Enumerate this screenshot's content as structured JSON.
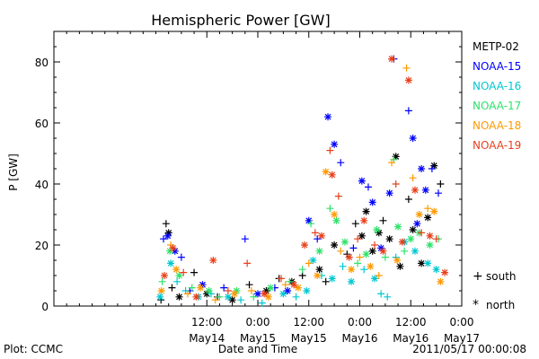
{
  "footer": {
    "plot_by": "Plot: CCMC",
    "timestamp": "2011/05/17 00:00:08"
  },
  "marker_key": {
    "south_symbol": "+",
    "south_label": "south",
    "north_symbol": "*",
    "north_label": "north"
  },
  "chart_data": {
    "type": "scatter",
    "title": "Hemispheric Power [GW]",
    "xlabel": "Date and Time",
    "ylabel": "P [GW]",
    "x_unit": "hours since 2011-05-13 00:00",
    "xlim": [
      0,
      96
    ],
    "ylim": [
      0,
      90
    ],
    "y_ticks": [
      0,
      20,
      40,
      60,
      80
    ],
    "x_ticks": [
      {
        "x": 36,
        "time": "12:00",
        "date": "May14"
      },
      {
        "x": 48,
        "time": "0:00",
        "date": "May15"
      },
      {
        "x": 60,
        "time": "12:00",
        "date": "May15"
      },
      {
        "x": 72,
        "time": "0:00",
        "date": "May16"
      },
      {
        "x": 84,
        "time": "12:00",
        "date": "May16"
      },
      {
        "x": 96,
        "time": "0:00",
        "date": "May17"
      }
    ],
    "legend_position": "right",
    "marker_types": {
      "+": "south",
      "*": "north"
    },
    "series": [
      {
        "name": "METP-02",
        "color": "#000000",
        "points": [
          {
            "x": 25.2,
            "y": 2,
            "m": "+"
          },
          {
            "x": 26.4,
            "y": 27,
            "m": "+"
          },
          {
            "x": 27.0,
            "y": 24,
            "m": "*"
          },
          {
            "x": 27.8,
            "y": 6,
            "m": "+"
          },
          {
            "x": 29.5,
            "y": 3,
            "m": "*"
          },
          {
            "x": 33.0,
            "y": 11,
            "m": "+"
          },
          {
            "x": 36.0,
            "y": 4,
            "m": "*"
          },
          {
            "x": 38.5,
            "y": 3,
            "m": "+"
          },
          {
            "x": 42.0,
            "y": 2,
            "m": "*"
          },
          {
            "x": 46.0,
            "y": 7,
            "m": "+"
          },
          {
            "x": 50.0,
            "y": 5,
            "m": "*"
          },
          {
            "x": 53.0,
            "y": 9,
            "m": "+"
          },
          {
            "x": 56.0,
            "y": 8,
            "m": "*"
          },
          {
            "x": 58.5,
            "y": 10,
            "m": "+"
          },
          {
            "x": 62.5,
            "y": 12,
            "m": "*"
          },
          {
            "x": 64.0,
            "y": 8,
            "m": "+"
          },
          {
            "x": 66.0,
            "y": 20,
            "m": "*"
          },
          {
            "x": 69.0,
            "y": 17,
            "m": "+"
          },
          {
            "x": 71.0,
            "y": 27,
            "m": "+"
          },
          {
            "x": 72.5,
            "y": 23,
            "m": "*"
          },
          {
            "x": 73.5,
            "y": 31,
            "m": "*"
          },
          {
            "x": 75.0,
            "y": 18,
            "m": "*"
          },
          {
            "x": 76.5,
            "y": 24,
            "m": "*"
          },
          {
            "x": 77.5,
            "y": 28,
            "m": "+"
          },
          {
            "x": 79.0,
            "y": 22,
            "m": "*"
          },
          {
            "x": 80.5,
            "y": 49,
            "m": "*"
          },
          {
            "x": 81.5,
            "y": 13,
            "m": "*"
          },
          {
            "x": 83.5,
            "y": 35,
            "m": "+"
          },
          {
            "x": 84.5,
            "y": 25,
            "m": "*"
          },
          {
            "x": 86.5,
            "y": 14,
            "m": "*"
          },
          {
            "x": 88.0,
            "y": 29,
            "m": "*"
          },
          {
            "x": 89.5,
            "y": 46,
            "m": "*"
          },
          {
            "x": 91.0,
            "y": 40,
            "m": "+"
          }
        ]
      },
      {
        "name": "NOAA-15",
        "color": "#0000ff",
        "points": [
          {
            "x": 25.8,
            "y": 22,
            "m": "+"
          },
          {
            "x": 26.8,
            "y": 23,
            "m": "*"
          },
          {
            "x": 28.5,
            "y": 18,
            "m": "*"
          },
          {
            "x": 30.0,
            "y": 16,
            "m": "+"
          },
          {
            "x": 32.0,
            "y": 5,
            "m": "+"
          },
          {
            "x": 35.0,
            "y": 7,
            "m": "*"
          },
          {
            "x": 40.0,
            "y": 6,
            "m": "+"
          },
          {
            "x": 45.0,
            "y": 22,
            "m": "+"
          },
          {
            "x": 48.0,
            "y": 4,
            "m": "*"
          },
          {
            "x": 52.0,
            "y": 6,
            "m": "+"
          },
          {
            "x": 55.0,
            "y": 5,
            "m": "*"
          },
          {
            "x": 60.0,
            "y": 28,
            "m": "*"
          },
          {
            "x": 62.0,
            "y": 22,
            "m": "+"
          },
          {
            "x": 64.5,
            "y": 62,
            "m": "*"
          },
          {
            "x": 66.0,
            "y": 53,
            "m": "*"
          },
          {
            "x": 67.5,
            "y": 47,
            "m": "+"
          },
          {
            "x": 70.5,
            "y": 19,
            "m": "+"
          },
          {
            "x": 72.5,
            "y": 41,
            "m": "*"
          },
          {
            "x": 74.0,
            "y": 39,
            "m": "+"
          },
          {
            "x": 75.0,
            "y": 34,
            "m": "*"
          },
          {
            "x": 77.0,
            "y": 19,
            "m": "*"
          },
          {
            "x": 79.0,
            "y": 37,
            "m": "*"
          },
          {
            "x": 80.0,
            "y": 81,
            "m": "+"
          },
          {
            "x": 83.5,
            "y": 64,
            "m": "+"
          },
          {
            "x": 84.5,
            "y": 55,
            "m": "*"
          },
          {
            "x": 85.5,
            "y": 27,
            "m": "*"
          },
          {
            "x": 86.5,
            "y": 45,
            "m": "*"
          },
          {
            "x": 87.5,
            "y": 38,
            "m": "*"
          },
          {
            "x": 89.0,
            "y": 45,
            "m": "+"
          },
          {
            "x": 90.5,
            "y": 37,
            "m": "+"
          }
        ]
      },
      {
        "name": "NOAA-16",
        "color": "#00c8d2",
        "points": [
          {
            "x": 25.0,
            "y": 3,
            "m": "*"
          },
          {
            "x": 27.5,
            "y": 14,
            "m": "*"
          },
          {
            "x": 29.0,
            "y": 8,
            "m": "+"
          },
          {
            "x": 31.0,
            "y": 5,
            "m": "+"
          },
          {
            "x": 34.0,
            "y": 3,
            "m": "*"
          },
          {
            "x": 37.0,
            "y": 4,
            "m": "+"
          },
          {
            "x": 41.0,
            "y": 3,
            "m": "*"
          },
          {
            "x": 44.0,
            "y": 2,
            "m": "+"
          },
          {
            "x": 49.0,
            "y": 1,
            "m": "+"
          },
          {
            "x": 54.0,
            "y": 4,
            "m": "*"
          },
          {
            "x": 57.0,
            "y": 3,
            "m": "+"
          },
          {
            "x": 59.5,
            "y": 5,
            "m": "*"
          },
          {
            "x": 61.0,
            "y": 15,
            "m": "*"
          },
          {
            "x": 63.0,
            "y": 10,
            "m": "+"
          },
          {
            "x": 65.5,
            "y": 9,
            "m": "*"
          },
          {
            "x": 68.0,
            "y": 13,
            "m": "+"
          },
          {
            "x": 70.0,
            "y": 8,
            "m": "*"
          },
          {
            "x": 73.0,
            "y": 12,
            "m": "+"
          },
          {
            "x": 75.5,
            "y": 9,
            "m": "*"
          },
          {
            "x": 77.0,
            "y": 4,
            "m": "+"
          },
          {
            "x": 78.5,
            "y": 3,
            "m": "+"
          },
          {
            "x": 80.5,
            "y": 16,
            "m": "+"
          },
          {
            "x": 82.5,
            "y": 21,
            "m": "*"
          },
          {
            "x": 85.0,
            "y": 18,
            "m": "*"
          },
          {
            "x": 88.0,
            "y": 14,
            "m": "*"
          },
          {
            "x": 90.0,
            "y": 12,
            "m": "*"
          }
        ]
      },
      {
        "name": "NOAA-17",
        "color": "#2ee26a",
        "points": [
          {
            "x": 25.5,
            "y": 8,
            "m": "+"
          },
          {
            "x": 27.3,
            "y": 18,
            "m": "*"
          },
          {
            "x": 29.5,
            "y": 10,
            "m": "*"
          },
          {
            "x": 32.5,
            "y": 6,
            "m": "+"
          },
          {
            "x": 36.5,
            "y": 5,
            "m": "*"
          },
          {
            "x": 39.0,
            "y": 3,
            "m": "+"
          },
          {
            "x": 43.0,
            "y": 5,
            "m": "*"
          },
          {
            "x": 47.0,
            "y": 3,
            "m": "+"
          },
          {
            "x": 51.0,
            "y": 6,
            "m": "*"
          },
          {
            "x": 55.5,
            "y": 8,
            "m": "+"
          },
          {
            "x": 58.5,
            "y": 12,
            "m": "+"
          },
          {
            "x": 60.5,
            "y": 27,
            "m": "+"
          },
          {
            "x": 62.5,
            "y": 18,
            "m": "*"
          },
          {
            "x": 65.0,
            "y": 32,
            "m": "+"
          },
          {
            "x": 66.5,
            "y": 28,
            "m": "*"
          },
          {
            "x": 68.5,
            "y": 21,
            "m": "*"
          },
          {
            "x": 71.5,
            "y": 14,
            "m": "+"
          },
          {
            "x": 73.5,
            "y": 17,
            "m": "*"
          },
          {
            "x": 76.0,
            "y": 25,
            "m": "*"
          },
          {
            "x": 78.0,
            "y": 16,
            "m": "+"
          },
          {
            "x": 80.0,
            "y": 48,
            "m": "+"
          },
          {
            "x": 81.0,
            "y": 26,
            "m": "*"
          },
          {
            "x": 82.5,
            "y": 18,
            "m": "+"
          },
          {
            "x": 84.0,
            "y": 22,
            "m": "*"
          },
          {
            "x": 86.0,
            "y": 24,
            "m": "*"
          },
          {
            "x": 88.5,
            "y": 20,
            "m": "*"
          },
          {
            "x": 90.5,
            "y": 22,
            "m": "+"
          }
        ]
      },
      {
        "name": "NOAA-18",
        "color": "#ff9900",
        "points": [
          {
            "x": 25.3,
            "y": 5,
            "m": "*"
          },
          {
            "x": 27.5,
            "y": 20,
            "m": "+"
          },
          {
            "x": 28.8,
            "y": 12,
            "m": "*"
          },
          {
            "x": 31.5,
            "y": 4,
            "m": "+"
          },
          {
            "x": 34.5,
            "y": 6,
            "m": "*"
          },
          {
            "x": 38.0,
            "y": 2,
            "m": "+"
          },
          {
            "x": 42.5,
            "y": 4,
            "m": "*"
          },
          {
            "x": 46.5,
            "y": 5,
            "m": "+"
          },
          {
            "x": 50.5,
            "y": 3,
            "m": "*"
          },
          {
            "x": 54.5,
            "y": 7,
            "m": "+"
          },
          {
            "x": 57.5,
            "y": 6,
            "m": "*"
          },
          {
            "x": 60.0,
            "y": 14,
            "m": "+"
          },
          {
            "x": 62.0,
            "y": 10,
            "m": "*"
          },
          {
            "x": 64.0,
            "y": 44,
            "m": "*"
          },
          {
            "x": 66.0,
            "y": 30,
            "m": "*"
          },
          {
            "x": 67.5,
            "y": 18,
            "m": "+"
          },
          {
            "x": 70.0,
            "y": 12,
            "m": "*"
          },
          {
            "x": 72.0,
            "y": 16,
            "m": "+"
          },
          {
            "x": 74.5,
            "y": 13,
            "m": "*"
          },
          {
            "x": 76.5,
            "y": 10,
            "m": "+"
          },
          {
            "x": 79.5,
            "y": 47,
            "m": "+"
          },
          {
            "x": 80.8,
            "y": 15,
            "m": "*"
          },
          {
            "x": 83.0,
            "y": 78,
            "m": "+"
          },
          {
            "x": 84.5,
            "y": 42,
            "m": "+"
          },
          {
            "x": 86.0,
            "y": 30,
            "m": "*"
          },
          {
            "x": 88.0,
            "y": 32,
            "m": "+"
          },
          {
            "x": 89.5,
            "y": 31,
            "m": "*"
          },
          {
            "x": 91.0,
            "y": 8,
            "m": "*"
          }
        ]
      },
      {
        "name": "NOAA-19",
        "color": "#e8401c",
        "points": [
          {
            "x": 26.0,
            "y": 10,
            "m": "*"
          },
          {
            "x": 28.0,
            "y": 19,
            "m": "*"
          },
          {
            "x": 30.5,
            "y": 11,
            "m": "+"
          },
          {
            "x": 33.5,
            "y": 3,
            "m": "*"
          },
          {
            "x": 37.5,
            "y": 15,
            "m": "*"
          },
          {
            "x": 41.0,
            "y": 5,
            "m": "+"
          },
          {
            "x": 45.5,
            "y": 14,
            "m": "+"
          },
          {
            "x": 49.5,
            "y": 4,
            "m": "*"
          },
          {
            "x": 53.5,
            "y": 9,
            "m": "+"
          },
          {
            "x": 56.5,
            "y": 7,
            "m": "*"
          },
          {
            "x": 59.0,
            "y": 20,
            "m": "*"
          },
          {
            "x": 61.5,
            "y": 24,
            "m": "+"
          },
          {
            "x": 63.0,
            "y": 23,
            "m": "*"
          },
          {
            "x": 65.0,
            "y": 51,
            "m": "+"
          },
          {
            "x": 65.5,
            "y": 43,
            "m": "*"
          },
          {
            "x": 67.0,
            "y": 36,
            "m": "+"
          },
          {
            "x": 69.5,
            "y": 16,
            "m": "*"
          },
          {
            "x": 71.5,
            "y": 22,
            "m": "+"
          },
          {
            "x": 73.0,
            "y": 28,
            "m": "*"
          },
          {
            "x": 75.5,
            "y": 20,
            "m": "+"
          },
          {
            "x": 77.5,
            "y": 18,
            "m": "*"
          },
          {
            "x": 79.5,
            "y": 81,
            "m": "*"
          },
          {
            "x": 80.5,
            "y": 40,
            "m": "+"
          },
          {
            "x": 82.0,
            "y": 21,
            "m": "*"
          },
          {
            "x": 83.5,
            "y": 74,
            "m": "*"
          },
          {
            "x": 85.0,
            "y": 38,
            "m": "*"
          },
          {
            "x": 86.5,
            "y": 24,
            "m": "+"
          },
          {
            "x": 88.5,
            "y": 23,
            "m": "*"
          },
          {
            "x": 90.0,
            "y": 22,
            "m": "+"
          },
          {
            "x": 92.0,
            "y": 11,
            "m": "*"
          }
        ]
      }
    ]
  }
}
